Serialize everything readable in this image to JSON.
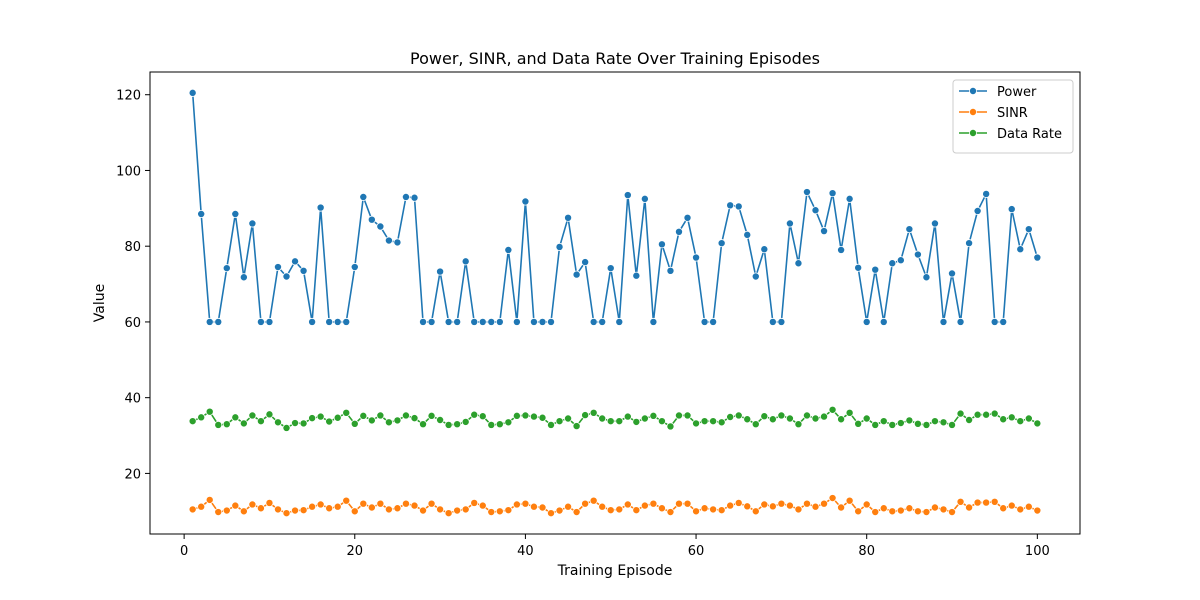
{
  "chart_data": {
    "type": "line",
    "title": "Power, SINR, and Data Rate Over Training Episodes",
    "xlabel": "Training Episode",
    "ylabel": "Value",
    "xlim": [
      -4,
      105
    ],
    "ylim": [
      4,
      126
    ],
    "xticks": [
      0,
      20,
      40,
      60,
      80,
      100
    ],
    "yticks": [
      20,
      40,
      60,
      80,
      100,
      120
    ],
    "legend_position": "top-right",
    "marker": "circle",
    "series": [
      {
        "name": "Power",
        "color": "#1f77b4",
        "values": [
          120.5,
          88.5,
          60,
          60,
          74.2,
          88.5,
          71.8,
          86,
          60,
          60,
          74.5,
          72,
          76,
          73.5,
          60,
          90.2,
          60,
          60,
          60,
          74.5,
          93,
          87,
          85.2,
          81.5,
          81,
          93,
          92.8,
          60,
          60,
          73.3,
          60,
          60,
          76,
          60,
          60,
          60,
          60,
          79,
          60,
          91.8,
          60,
          60,
          60,
          79.8,
          87.5,
          72.5,
          75.8,
          60,
          60,
          74.2,
          60,
          93.5,
          72.2,
          92.5,
          60,
          80.5,
          73.5,
          83.8,
          87.5,
          77,
          60,
          60,
          80.8,
          90.8,
          90.5,
          83,
          72,
          79.2,
          60,
          60,
          86,
          75.5,
          94.3,
          89.5,
          84,
          94,
          79,
          92.5,
          74.3,
          60,
          73.8,
          60,
          75.5,
          76.3,
          84.5,
          77.8,
          71.8,
          86,
          60,
          72.8,
          60,
          80.8,
          89.3,
          93.8,
          60,
          60,
          89.8,
          79.2,
          84.5,
          77
        ]
      },
      {
        "name": "SINR",
        "color": "#ff7f0e",
        "values": [
          10.5,
          11.2,
          13,
          9.8,
          10.2,
          11.5,
          10,
          11.8,
          10.8,
          12.2,
          10.5,
          9.5,
          10.2,
          10.3,
          11.2,
          11.8,
          10.8,
          11.2,
          12.8,
          10,
          12,
          11,
          12,
          10.5,
          10.8,
          12,
          11.5,
          10.2,
          12,
          10.5,
          9.5,
          10.2,
          10.5,
          12.2,
          11.5,
          9.8,
          10,
          10.3,
          11.8,
          12,
          11.2,
          11,
          9.5,
          10.2,
          11.2,
          9.8,
          12,
          12.8,
          11.2,
          10.3,
          10.5,
          11.8,
          10.3,
          11.5,
          12,
          10.8,
          9.8,
          12,
          12,
          10,
          10.8,
          10.5,
          10.3,
          11.5,
          12.2,
          11.3,
          10,
          11.8,
          11.3,
          12,
          11.5,
          10.5,
          12,
          11.2,
          12,
          13.5,
          11,
          12.8,
          10,
          11.8,
          9.8,
          10.8,
          10,
          10.2,
          10.8,
          10,
          9.8,
          11,
          10.5,
          9.8,
          12.5,
          11,
          12.3,
          12.3,
          12.5,
          10.8,
          11.5,
          10.5,
          11.2,
          10.2
        ]
      },
      {
        "name": "Data Rate",
        "color": "#2ca02c",
        "values": [
          33.8,
          34.8,
          36.3,
          32.8,
          33,
          34.8,
          33.2,
          35.3,
          33.8,
          35.6,
          33.5,
          32,
          33.3,
          33.2,
          34.6,
          35,
          33.7,
          34.7,
          36,
          33.1,
          35.2,
          34,
          35.3,
          33.5,
          34,
          35.3,
          34.6,
          33,
          35.2,
          34.1,
          32.8,
          33,
          33.6,
          35.5,
          35.1,
          32.8,
          33,
          33.5,
          35.2,
          35.3,
          35,
          34.7,
          32.8,
          33.8,
          34.5,
          32.5,
          35.4,
          36,
          34.5,
          33.8,
          33.8,
          35,
          33.6,
          34.5,
          35.2,
          33.8,
          32.4,
          35.3,
          35.3,
          33.2,
          33.8,
          33.8,
          33.5,
          34.9,
          35.3,
          34.3,
          33,
          35.1,
          34.3,
          35.3,
          34.5,
          33,
          35.3,
          34.5,
          35,
          36.8,
          34.3,
          36,
          33.1,
          34.5,
          32.8,
          33.8,
          32.8,
          33.3,
          34,
          33.1,
          32.8,
          33.8,
          33.5,
          32.8,
          35.8,
          34.1,
          35.5,
          35.5,
          35.8,
          34.3,
          34.8,
          33.8,
          34.5,
          33.2
        ]
      }
    ]
  }
}
